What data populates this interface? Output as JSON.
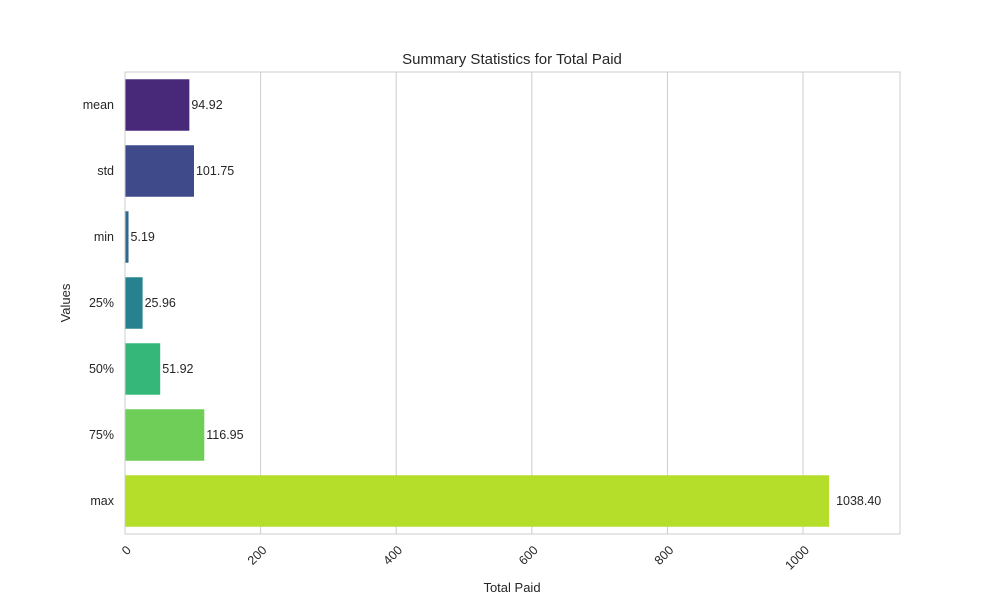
{
  "chart_data": {
    "type": "bar",
    "orientation": "horizontal",
    "title": "Summary Statistics for Total Paid",
    "xlabel": "Total Paid",
    "ylabel": "Values",
    "categories": [
      "mean",
      "std",
      "min",
      "25%",
      "50%",
      "75%",
      "max"
    ],
    "values": [
      94.92,
      101.75,
      5.19,
      25.96,
      51.92,
      116.95,
      1038.4
    ],
    "value_labels": [
      "94.92",
      "101.75",
      "5.19",
      "25.96",
      "51.92",
      "116.95",
      "1038.40"
    ],
    "xlim": [
      0,
      1143
    ],
    "xticks": [
      0,
      200,
      400,
      600,
      800,
      1000
    ],
    "xtick_labels": [
      "0",
      "200",
      "400",
      "600",
      "800",
      "1000"
    ],
    "xtick_rotation": 45,
    "grid": "vertical",
    "colors": [
      "#482878",
      "#3e4a89",
      "#31688e",
      "#26828e",
      "#35b779",
      "#6ece58",
      "#b5de2b"
    ]
  },
  "colors": {
    "grid": "#cccccc",
    "spine": "#cccccc",
    "text": "#262626",
    "background": "#ffffff"
  }
}
